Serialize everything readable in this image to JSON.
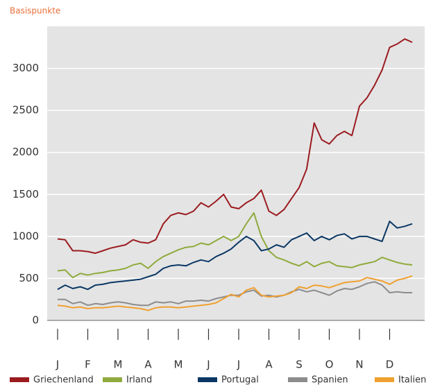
{
  "chart_data": {
    "type": "line",
    "title": "Basispunkte",
    "categories": [
      "J",
      null,
      null,
      null,
      "F",
      null,
      null,
      null,
      "M",
      null,
      null,
      null,
      "A",
      null,
      null,
      null,
      "M",
      null,
      null,
      null,
      "J",
      null,
      null,
      null,
      "J",
      null,
      null,
      null,
      "A",
      null,
      null,
      null,
      "S",
      null,
      null,
      null,
      "O",
      null,
      null,
      null,
      "N",
      null,
      null,
      null,
      "D",
      null,
      null,
      null
    ],
    "ylim": [
      0,
      3500
    ],
    "yticks": [
      0,
      500,
      1000,
      1500,
      2000,
      2500,
      3000
    ],
    "grid": true,
    "series": [
      {
        "name": "Griechenland",
        "color": "#9b1b1f",
        "values": [
          970,
          960,
          830,
          830,
          820,
          800,
          830,
          860,
          880,
          900,
          960,
          930,
          920,
          960,
          1150,
          1250,
          1280,
          1260,
          1300,
          1400,
          1350,
          1420,
          1500,
          1350,
          1330,
          1400,
          1450,
          1550,
          1300,
          1250,
          1320,
          1450,
          1580,
          1800,
          2350,
          2150,
          2100,
          2200,
          2250,
          2200,
          2550,
          2650,
          2800,
          2980,
          3250,
          3290,
          3350,
          3310
        ]
      },
      {
        "name": "Irland",
        "color": "#8faa3c",
        "values": [
          590,
          600,
          510,
          560,
          540,
          560,
          570,
          590,
          600,
          620,
          660,
          680,
          620,
          700,
          760,
          800,
          840,
          870,
          880,
          920,
          900,
          950,
          1000,
          950,
          1000,
          1150,
          1280,
          1000,
          830,
          750,
          720,
          680,
          650,
          700,
          640,
          680,
          700,
          650,
          640,
          630,
          660,
          680,
          700,
          750,
          720,
          690,
          670,
          660
        ]
      },
      {
        "name": "Portugal",
        "color": "#0a3764",
        "values": [
          370,
          420,
          380,
          400,
          370,
          420,
          430,
          450,
          460,
          470,
          480,
          490,
          520,
          550,
          620,
          650,
          660,
          650,
          690,
          720,
          700,
          760,
          800,
          850,
          930,
          1000,
          950,
          830,
          850,
          900,
          870,
          960,
          1000,
          1040,
          950,
          1000,
          960,
          1010,
          1030,
          970,
          1000,
          1000,
          970,
          940,
          1180,
          1100,
          1120,
          1150
        ]
      },
      {
        "name": "Spanien",
        "color": "#8c8c8c",
        "values": [
          250,
          250,
          200,
          220,
          180,
          200,
          190,
          210,
          220,
          210,
          190,
          180,
          180,
          220,
          210,
          220,
          200,
          230,
          230,
          240,
          230,
          260,
          280,
          300,
          300,
          340,
          360,
          290,
          300,
          280,
          300,
          340,
          370,
          340,
          360,
          330,
          300,
          350,
          380,
          370,
          400,
          440,
          460,
          420,
          330,
          340,
          330,
          330
        ]
      },
      {
        "name": "Italien",
        "color": "#f0a030",
        "values": [
          180,
          170,
          150,
          160,
          140,
          150,
          150,
          160,
          170,
          160,
          150,
          140,
          120,
          150,
          160,
          160,
          150,
          160,
          170,
          180,
          190,
          210,
          260,
          310,
          280,
          360,
          390,
          300,
          280,
          290,
          300,
          330,
          400,
          380,
          420,
          410,
          390,
          420,
          450,
          460,
          470,
          510,
          490,
          470,
          430,
          480,
          500,
          530
        ]
      }
    ]
  }
}
